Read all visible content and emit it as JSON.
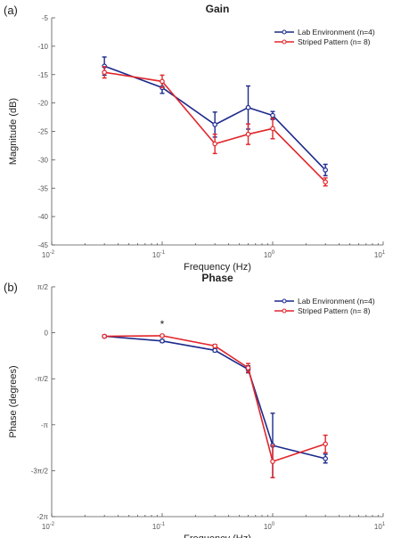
{
  "chart_data": [
    {
      "panel_label": "(a)",
      "type": "line",
      "title": "Gain",
      "xlabel": "Frequency (Hz)",
      "ylabel": "Magnitude (dB)",
      "xscale": "log",
      "xlim": [
        0.01,
        10
      ],
      "ylim": [
        -45,
        -5
      ],
      "xticks": [
        {
          "value": 0.01,
          "base": "10",
          "exp": "-2"
        },
        {
          "value": 0.1,
          "base": "10",
          "exp": "-1"
        },
        {
          "value": 1,
          "base": "10",
          "exp": "0"
        },
        {
          "value": 10,
          "base": "10",
          "exp": "1"
        }
      ],
      "yticks": [
        {
          "value": -5,
          "label": "-5"
        },
        {
          "value": -10,
          "label": "-10"
        },
        {
          "value": -15,
          "label": "-15"
        },
        {
          "value": -20,
          "label": "-20"
        },
        {
          "value": -25,
          "label": "-25"
        },
        {
          "value": -30,
          "label": "-30"
        },
        {
          "value": -35,
          "label": "-35"
        },
        {
          "value": -40,
          "label": "-40"
        },
        {
          "value": -45,
          "label": "-45"
        }
      ],
      "legend_position": "top-right",
      "series": [
        {
          "name": "Lab Environment (n=4)",
          "color": "#1c2a8c",
          "x": [
            0.03,
            0.1,
            0.3,
            0.6,
            1.0,
            3.0
          ],
          "y": [
            -13.5,
            -17.3,
            -23.8,
            -20.8,
            -22.2,
            -31.8
          ],
          "err": [
            1.6,
            1.0,
            2.2,
            3.8,
            0.7,
            1.0
          ]
        },
        {
          "name": "Striped Pattern (n= 8)",
          "color": "#e0262b",
          "x": [
            0.03,
            0.1,
            0.3,
            0.6,
            1.0,
            3.0
          ],
          "y": [
            -14.6,
            -16.2,
            -27.2,
            -25.5,
            -24.5,
            -33.9
          ],
          "err": [
            1.0,
            1.1,
            1.7,
            1.8,
            1.8,
            0.7
          ]
        }
      ]
    },
    {
      "panel_label": "(b)",
      "type": "line",
      "title": "Phase",
      "xlabel": "Frequency (Hz)",
      "ylabel": "Phase (degrees)",
      "xscale": "log",
      "xlim": [
        0.01,
        10
      ],
      "ylim": [
        -6.283,
        1.571
      ],
      "xticks": [
        {
          "value": 0.01,
          "base": "10",
          "exp": "-2"
        },
        {
          "value": 0.1,
          "base": "10",
          "exp": "-1"
        },
        {
          "value": 1,
          "base": "10",
          "exp": "0"
        },
        {
          "value": 10,
          "base": "10",
          "exp": "1"
        }
      ],
      "yticks": [
        {
          "value": 1.571,
          "label": "π/2"
        },
        {
          "value": 0,
          "label": "0"
        },
        {
          "value": -1.571,
          "label": "-π/2"
        },
        {
          "value": -3.142,
          "label": "-π"
        },
        {
          "value": -4.712,
          "label": "-3π/2"
        },
        {
          "value": -6.283,
          "label": "-2π"
        }
      ],
      "annotations": [
        {
          "text": "*",
          "x": 0.1,
          "y": 0.32
        }
      ],
      "legend_position": "top-right",
      "series": [
        {
          "name": "Lab Environment (n=4)",
          "color": "#1c2a8c",
          "x": [
            0.03,
            0.1,
            0.3,
            0.6,
            1.0,
            3.0
          ],
          "y": [
            -0.12,
            -0.28,
            -0.6,
            -1.25,
            -3.85,
            -4.3
          ],
          "err": [
            0.04,
            0.05,
            0.05,
            0.12,
            1.1,
            0.15
          ]
        },
        {
          "name": "Striped Pattern (n= 8)",
          "color": "#e0262b",
          "x": [
            0.03,
            0.1,
            0.3,
            0.6,
            1.0,
            3.0
          ],
          "y": [
            -0.12,
            -0.1,
            -0.45,
            -1.2,
            -4.4,
            -3.8
          ],
          "err": [
            0.04,
            0.04,
            0.05,
            0.15,
            0.55,
            0.3
          ]
        }
      ]
    }
  ]
}
